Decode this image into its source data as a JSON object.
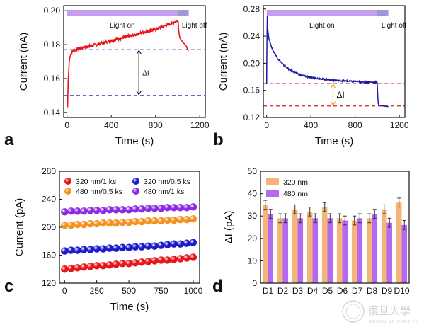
{
  "chart_data": [
    {
      "panel": "a",
      "type": "line",
      "xlabel": "Time (s)",
      "ylabel": "Current (nA)",
      "xlim": [
        -30,
        1250
      ],
      "ylim": [
        0.137,
        0.203
      ],
      "xticks": [
        0,
        400,
        800,
        1200
      ],
      "yticks": [
        0.14,
        0.16,
        0.18,
        0.2
      ],
      "ytick_labels": [
        "0.14",
        "0.16",
        "0.18",
        "0.20"
      ],
      "color": "#e8141a",
      "series": [
        {
          "x": [
            0,
            5,
            10,
            20,
            30,
            40,
            50,
            60,
            80,
            100,
            150,
            200,
            250,
            300,
            400,
            500,
            600,
            700,
            800,
            900,
            950,
            1000,
            1005,
            1010,
            1020,
            1040,
            1060,
            1080,
            1090,
            1100
          ],
          "y": [
            0.15,
            0.143,
            0.158,
            0.17,
            0.174,
            0.175,
            0.176,
            0.1765,
            0.177,
            0.1775,
            0.1785,
            0.179,
            0.1798,
            0.1805,
            0.1825,
            0.184,
            0.1855,
            0.1875,
            0.189,
            0.1915,
            0.1925,
            0.1945,
            0.1935,
            0.188,
            0.184,
            0.182,
            0.1805,
            0.179,
            0.177,
            0.1765
          ]
        }
      ],
      "annotations": [
        {
          "text": "Light on"
        },
        {
          "text": "Light off"
        },
        {
          "text": "ΔI"
        }
      ],
      "dashed_lines": [
        0.177,
        0.15
      ],
      "light_on_range": [
        0,
        1000
      ],
      "light_off_range": [
        1000,
        1100
      ]
    },
    {
      "panel": "b",
      "type": "line",
      "xlabel": "Time (s)",
      "ylabel": "Current (nA)",
      "xlim": [
        -30,
        1250
      ],
      "ylim": [
        0.12,
        0.285
      ],
      "xticks": [
        0,
        400,
        800,
        1200
      ],
      "yticks": [
        0.12,
        0.16,
        0.2,
        0.24,
        0.28
      ],
      "ytick_labels": [
        "0.12",
        "0.16",
        "0.20",
        "0.24",
        "0.28"
      ],
      "color": "#1a1aa6",
      "series": [
        {
          "x": [
            0,
            3,
            6,
            10,
            20,
            40,
            60,
            100,
            150,
            200,
            250,
            300,
            400,
            500,
            600,
            700,
            800,
            900,
            990,
            1000,
            1005,
            1010,
            1020,
            1050,
            1100
          ],
          "y": [
            0.17,
            0.24,
            0.27,
            0.25,
            0.237,
            0.226,
            0.218,
            0.207,
            0.198,
            0.191,
            0.187,
            0.183,
            0.179,
            0.177,
            0.175,
            0.174,
            0.173,
            0.172,
            0.172,
            0.171,
            0.15,
            0.14,
            0.138,
            0.137,
            0.136
          ]
        }
      ],
      "annotations": [
        {
          "text": "Light on"
        },
        {
          "text": "Light off"
        },
        {
          "text": "ΔI"
        }
      ],
      "dashed_lines": [
        0.17,
        0.137
      ],
      "light_on_range": [
        0,
        1000
      ],
      "light_off_range": [
        1000,
        1100
      ]
    },
    {
      "panel": "c",
      "type": "scatter",
      "xlabel": "Time (s)",
      "ylabel": "Current (pA)",
      "xlim": [
        -40,
        1050
      ],
      "ylim": [
        120,
        280
      ],
      "xticks": [
        0,
        250,
        500,
        750,
        1000
      ],
      "yticks": [
        120,
        160,
        200,
        240,
        280
      ],
      "legend": "top",
      "x": [
        0,
        50,
        100,
        150,
        200,
        250,
        300,
        350,
        400,
        450,
        500,
        550,
        600,
        650,
        700,
        750,
        800,
        850,
        900,
        950,
        1000
      ],
      "series": [
        {
          "name": "320 nm/1 ks",
          "color": "#e8141a",
          "values": [
            140,
            141,
            142,
            143,
            144,
            145,
            145,
            146,
            147,
            148,
            148,
            149,
            150,
            151,
            152,
            153,
            153,
            154,
            155,
            156,
            157
          ]
        },
        {
          "name": "320 nm/0.5 ks",
          "color": "#1a1acc",
          "values": [
            166,
            167,
            167,
            168,
            168,
            169,
            169,
            170,
            170,
            171,
            171,
            172,
            172,
            173,
            173,
            174,
            175,
            176,
            176,
            177,
            178
          ]
        },
        {
          "name": "480 nm/0.5 ks",
          "color": "#f5921e",
          "values": [
            203,
            203,
            204,
            204,
            205,
            205,
            206,
            206,
            206,
            207,
            207,
            208,
            208,
            209,
            209,
            209,
            210,
            210,
            211,
            211,
            212
          ]
        },
        {
          "name": "480 nm/1 ks",
          "color": "#8a2be2",
          "values": [
            222,
            223,
            223,
            223,
            224,
            224,
            224,
            225,
            225,
            225,
            225,
            226,
            226,
            227,
            227,
            227,
            228,
            228,
            228,
            228,
            229
          ]
        }
      ]
    },
    {
      "panel": "d",
      "type": "bar",
      "ylabel": "ΔI (pA)",
      "ylim": [
        0,
        50
      ],
      "yticks": [
        0,
        10,
        20,
        30,
        40,
        50
      ],
      "categories": [
        "D1",
        "D2",
        "D3",
        "D4",
        "D5",
        "D6",
        "D7",
        "D8",
        "D9",
        "D10"
      ],
      "legend": "top-left",
      "series": [
        {
          "name": "320 nm",
          "color": "#f5b47a",
          "values": [
            35,
            29,
            33,
            32,
            34,
            29,
            28,
            29,
            33,
            36
          ],
          "errors": [
            2,
            2,
            2,
            2,
            2,
            2,
            2,
            2,
            2,
            2
          ]
        },
        {
          "name": "480 nm",
          "color": "#b36af0",
          "values": [
            31,
            29,
            29,
            29,
            29,
            28,
            29,
            31,
            27,
            26
          ],
          "errors": [
            2,
            2,
            2,
            2,
            2,
            2,
            2,
            2,
            2,
            2
          ]
        }
      ]
    }
  ],
  "panel_letters": [
    "a",
    "b",
    "c",
    "d"
  ],
  "watermark": {
    "text": "復旦大學",
    "subtext": "FUDAN UNIVERSITY"
  }
}
